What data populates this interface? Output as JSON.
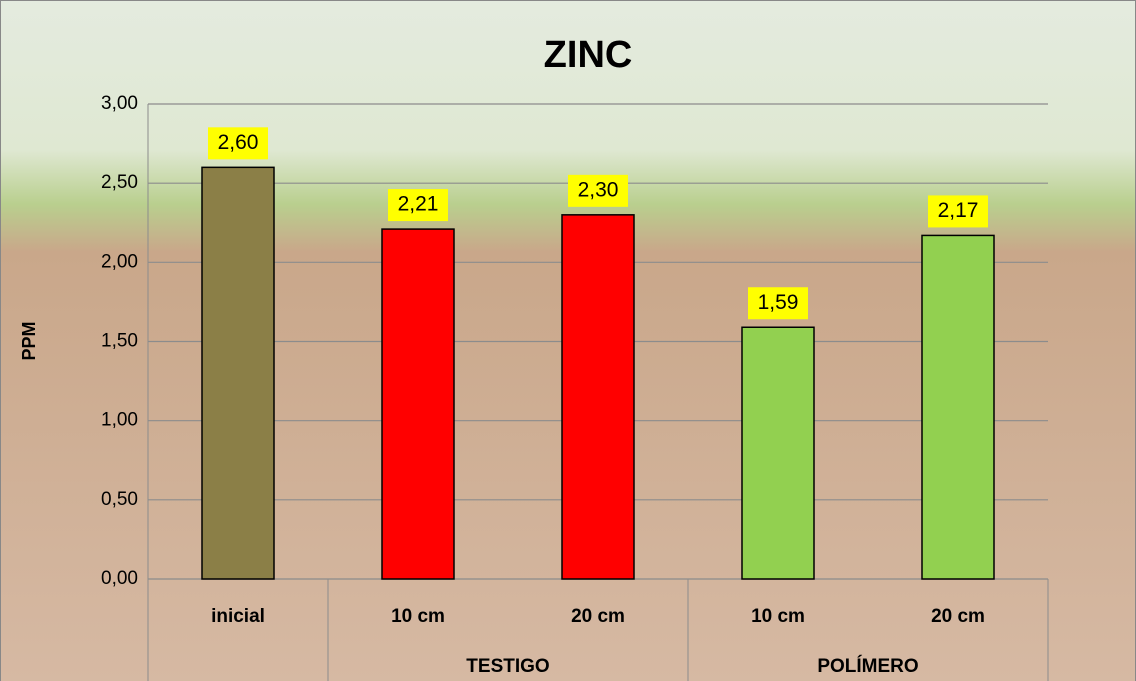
{
  "chart_data": {
    "type": "bar",
    "title": "ZINC",
    "y_label": "PPM",
    "categories": [
      "inicial",
      "10 cm",
      "20 cm",
      "10 cm",
      "20 cm"
    ],
    "groups": [
      null,
      "TESTIGO",
      "TESTIGO",
      "POLÍMERO",
      "POLÍMERO"
    ],
    "values": [
      2.6,
      2.21,
      2.3,
      1.59,
      2.17
    ],
    "value_labels": [
      "2,60",
      "2,21",
      "2,30",
      "1,59",
      "2,17"
    ],
    "colors": [
      "#8b7f47",
      "#ff0000",
      "#ff0000",
      "#92d050",
      "#92d050"
    ],
    "ylim": [
      0,
      3
    ],
    "yticks": [
      {
        "value": 0,
        "label": "0,00"
      },
      {
        "value": 0.5,
        "label": "0,50"
      },
      {
        "value": 1,
        "label": "1,00"
      },
      {
        "value": 1.5,
        "label": "1,50"
      },
      {
        "value": 2,
        "label": "2,00"
      },
      {
        "value": 2.5,
        "label": "2,50"
      },
      {
        "value": 3,
        "label": "3,00"
      }
    ],
    "grid": true
  }
}
